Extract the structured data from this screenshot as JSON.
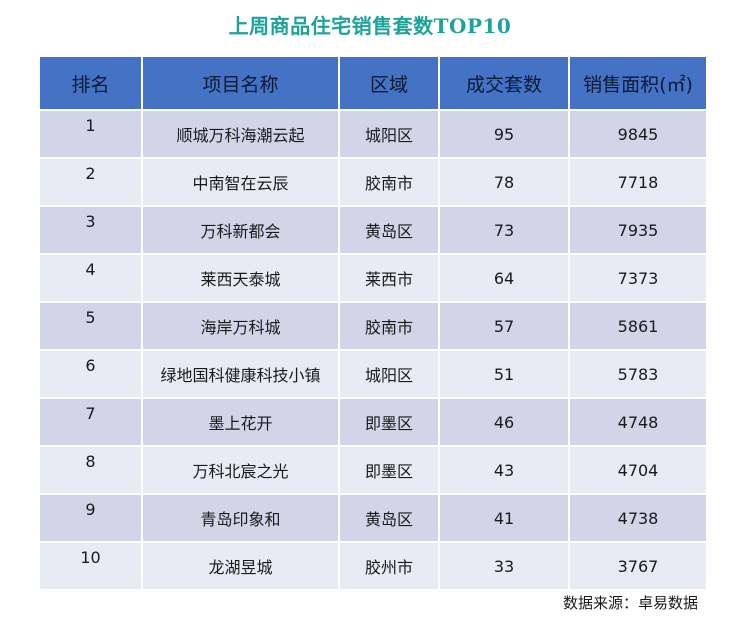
{
  "title": "上周商品住宅销售套数TOP10",
  "table": {
    "headers": [
      "排名",
      "项目名称",
      "区域",
      "成交套数",
      "销售面积(㎡)"
    ],
    "rows": [
      {
        "rank": "1",
        "name": "顺城万科海潮云起",
        "area": "城阳区",
        "units": "95",
        "size": "9845"
      },
      {
        "rank": "2",
        "name": "中南智在云辰",
        "area": "胶南市",
        "units": "78",
        "size": "7718"
      },
      {
        "rank": "3",
        "name": "万科新都会",
        "area": "黄岛区",
        "units": "73",
        "size": "7935"
      },
      {
        "rank": "4",
        "name": "莱西天泰城",
        "area": "莱西市",
        "units": "64",
        "size": "7373"
      },
      {
        "rank": "5",
        "name": "海岸万科城",
        "area": "胶南市",
        "units": "57",
        "size": "5861"
      },
      {
        "rank": "6",
        "name": "绿地国科健康科技小镇",
        "area": "城阳区",
        "units": "51",
        "size": "5783"
      },
      {
        "rank": "7",
        "name": "墨上花开",
        "area": "即墨区",
        "units": "46",
        "size": "4748"
      },
      {
        "rank": "8",
        "name": "万科北宸之光",
        "area": "即墨区",
        "units": "43",
        "size": "4704"
      },
      {
        "rank": "9",
        "name": "青岛印象和",
        "area": "黄岛区",
        "units": "41",
        "size": "4738"
      },
      {
        "rank": "10",
        "name": "龙湖昱城",
        "area": "胶州市",
        "units": "33",
        "size": "3767"
      }
    ]
  },
  "source": "数据来源：卓易数据",
  "colors": {
    "title": "#1da39a",
    "header_bg": "#4472c4",
    "row_dark": "#d0d6e8",
    "row_light": "#e9ebf4"
  }
}
